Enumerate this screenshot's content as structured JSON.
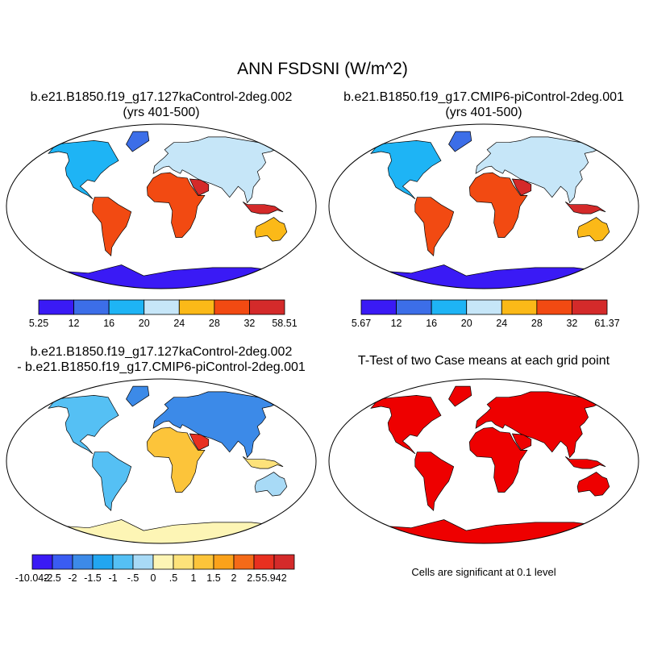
{
  "title": "ANN FSDSNI (W/m^2)",
  "panels": [
    {
      "id": "case1",
      "title_lines": [
        "b.e21.B1850.f19_g17.127kaControl-2deg.002",
        "(yrs 401-500)"
      ],
      "colorbar": {
        "labels": [
          "5.25",
          "12",
          "16",
          "20",
          "24",
          "28",
          "32",
          "58.51"
        ],
        "colors": [
          "#3a1af5",
          "#3c6ee8",
          "#1eb4f5",
          "#c6e6f8",
          "#fbb918",
          "#f24a12",
          "#d42a2a"
        ]
      }
    },
    {
      "id": "case2",
      "title_lines": [
        "b.e21.B1850.f19_g17.CMIP6-piControl-2deg.001",
        "(yrs 401-500)"
      ],
      "colorbar": {
        "labels": [
          "5.67",
          "12",
          "16",
          "20",
          "24",
          "28",
          "32",
          "61.37"
        ],
        "colors": [
          "#3a1af5",
          "#3c6ee8",
          "#1eb4f5",
          "#c6e6f8",
          "#fbb918",
          "#f24a12",
          "#d42a2a"
        ]
      }
    },
    {
      "id": "difference",
      "title_lines": [
        "b.e21.B1850.f19_g17.127kaControl-2deg.002",
        "- b.e21.B1850.f19_g17.CMIP6-piControl-2deg.001"
      ],
      "colorbar": {
        "labels": [
          "-10.042",
          "-2.5",
          "-2",
          "-1.5",
          "-1",
          "-.5",
          "0",
          ".5",
          "1",
          "1.5",
          "2",
          "2.5",
          "5.942"
        ],
        "colors": [
          "#3a1af5",
          "#3a5cf2",
          "#3c8ae8",
          "#22a6f0",
          "#55c0f4",
          "#a8daf6",
          "#fdf5b5",
          "#fde27a",
          "#fcc43a",
          "#fba21a",
          "#f46a18",
          "#e83020",
          "#d42a2a"
        ]
      }
    },
    {
      "id": "ttest",
      "title_lines": [
        "T-Test of two Case means at each grid point"
      ],
      "note": "Cells are significant at 0.1 level",
      "fill_color": "#ee0000"
    }
  ]
}
